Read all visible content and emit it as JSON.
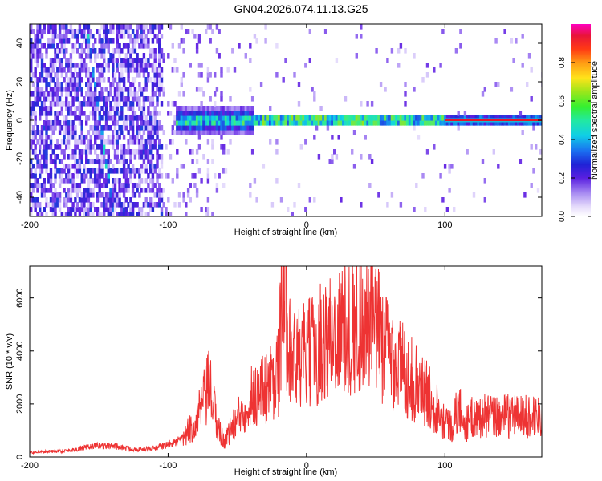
{
  "title": "GN04.2026.074.11.13.G25",
  "colors": {
    "snr_line": "#ee3333",
    "colormap": [
      "#ffffff",
      "#dccdfa",
      "#a88cf2",
      "#6a2ae0",
      "#2a1fd6",
      "#1a6ff0",
      "#12d4e8",
      "#36ef8c",
      "#9ae61e",
      "#ffd21a",
      "#ff6a14",
      "#e8142a",
      "#ff00b8"
    ]
  },
  "chart_data": [
    {
      "type": "heatmap",
      "xlabel": "Height of straight line (km)",
      "ylabel": "Frequency (Hz)",
      "xlim": [
        -200,
        170
      ],
      "ylim": [
        -50,
        50
      ],
      "xticks": [
        -200,
        -100,
        0,
        100
      ],
      "yticks": [
        -40,
        -20,
        0,
        20,
        40
      ],
      "colorbar": {
        "label": "Normalized spectral amplitude",
        "range": [
          0,
          1
        ],
        "ticks": [
          "0.0",
          "0.2",
          "0.4",
          "0.6",
          "0.8"
        ]
      },
      "features": {
        "carrier_frequency_hz": 0,
        "carrier_visible_from_km": -100,
        "diagonal_trace_km": [
          [
            -160,
            50
          ],
          [
            -140,
            -50
          ]
        ]
      }
    },
    {
      "type": "line",
      "xlabel": "Height of straight line (km)",
      "ylabel": "SNR (10 * v/v)",
      "xlim": [
        -200,
        170
      ],
      "ylim": [
        0,
        7200
      ],
      "xticks": [
        -200,
        -100,
        0,
        100
      ],
      "yticks": [
        0,
        2000,
        4000,
        6000
      ],
      "series": [
        {
          "x": [
            -200,
            -190,
            -180,
            -170,
            -160,
            -150,
            -140,
            -130,
            -120,
            -110,
            -100,
            -90,
            -80,
            -75,
            -70,
            -65,
            -60,
            -50,
            -40,
            -30,
            -20,
            -17,
            -10,
            0,
            10,
            20,
            30,
            40,
            50,
            60,
            70,
            80,
            90,
            95,
            100,
            105,
            110,
            115,
            120,
            130,
            140,
            150,
            160,
            170
          ],
          "y": [
            180,
            200,
            220,
            260,
            350,
            430,
            420,
            330,
            280,
            330,
            460,
            650,
            1300,
            2000,
            2700,
            1300,
            600,
            1400,
            2300,
            2600,
            3300,
            6700,
            3600,
            3800,
            4300,
            4600,
            4900,
            5050,
            4800,
            4000,
            3300,
            2700,
            2200,
            1800,
            1400,
            1100,
            1900,
            1200,
            1500,
            1550,
            1500,
            1600,
            1500,
            1650
          ]
        }
      ]
    }
  ]
}
